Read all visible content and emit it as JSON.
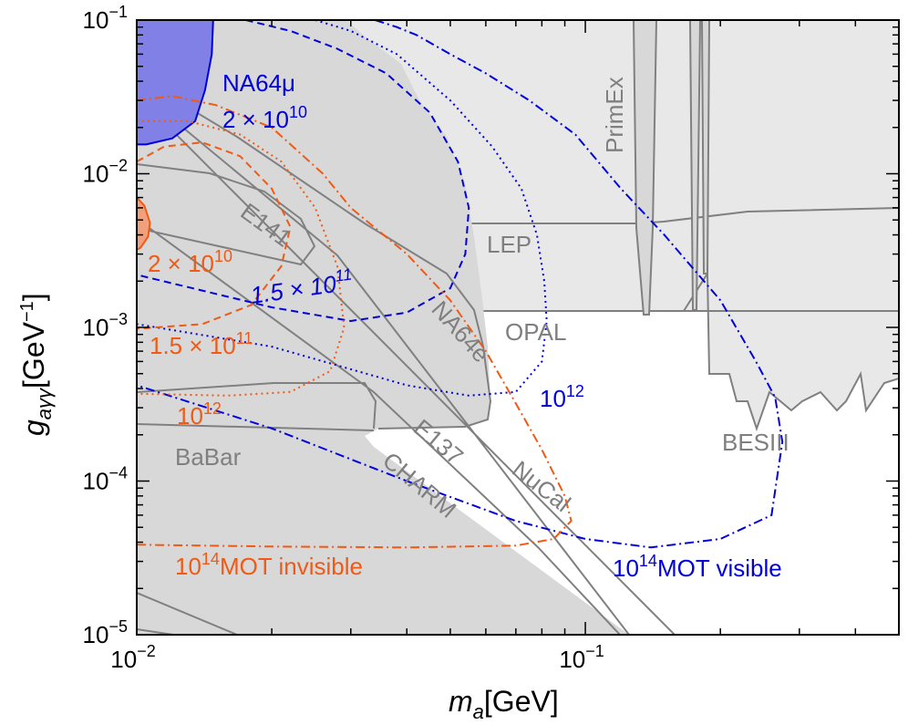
{
  "chart_data": {
    "type": "line",
    "title": "",
    "xlabel": "m_a [GeV]",
    "ylabel": "g_aγγ [GeV^-1]",
    "x_scale": "log",
    "y_scale": "log",
    "xlim": [
      0.01,
      0.5
    ],
    "ylim": [
      1e-05,
      0.1
    ],
    "x_ticks": [
      {
        "value": 0.01,
        "base": "10",
        "exp": "−2"
      },
      {
        "value": 0.1,
        "base": "10",
        "exp": "−1"
      }
    ],
    "y_ticks": [
      {
        "value": 1e-05,
        "base": "10",
        "exp": "−5"
      },
      {
        "value": 0.0001,
        "base": "10",
        "exp": "−4"
      },
      {
        "value": 0.001,
        "base": "10",
        "exp": "−3"
      },
      {
        "value": 0.01,
        "base": "10",
        "exp": "−2"
      },
      {
        "value": 0.1,
        "base": "10",
        "exp": "−1"
      }
    ],
    "excluded_regions": [
      {
        "name": "LEP",
        "label": "LEP"
      },
      {
        "name": "OPAL",
        "label": "OPAL"
      },
      {
        "name": "PrimEx",
        "label": "PrimEx"
      },
      {
        "name": "BESIII",
        "label": "BESIII"
      },
      {
        "name": "E141",
        "label": "E141"
      },
      {
        "name": "NA64e",
        "label": "NA64e"
      },
      {
        "name": "E137",
        "label": "E137"
      },
      {
        "name": "CHARM",
        "label": "CHARM"
      },
      {
        "name": "NuCal",
        "label": "NuCal"
      },
      {
        "name": "BaBar",
        "label": "BaBar"
      },
      {
        "name": "NA64mu",
        "label": "NA64μ"
      }
    ],
    "series": [
      {
        "name": "NA64mu 2e10 MOT",
        "color": "#0000dd",
        "style": "filled",
        "label": "2 × 10",
        "label_exp": "10"
      },
      {
        "name": "NA64mu 1.5e11 MOT",
        "color": "#0000dd",
        "style": "dashed",
        "label": "1.5 × 10",
        "label_exp": "11"
      },
      {
        "name": "NA64mu 1e12 MOT",
        "color": "#0000dd",
        "style": "dotted",
        "label": "10",
        "label_exp": "12"
      },
      {
        "name": "1e14 MOT visible",
        "color": "#0000dd",
        "style": "dash-dot",
        "label": "10",
        "label_exp": "14",
        "label_suffix": "MOT visible"
      },
      {
        "name": "NA64e 2e10 MOT",
        "color": "#f05a14",
        "style": "filled",
        "label": "2 × 10",
        "label_exp": "10"
      },
      {
        "name": "NA64e 1.5e11 MOT",
        "color": "#f05a14",
        "style": "dashed",
        "label": "1.5 × 10",
        "label_exp": "11"
      },
      {
        "name": "NA64e 1e12 MOT",
        "color": "#f05a14",
        "style": "dotted",
        "label": "10",
        "label_exp": "12"
      },
      {
        "name": "1e14 MOT invisible",
        "color": "#f05a14",
        "style": "dash-dot",
        "label": "10",
        "label_exp": "14",
        "label_suffix": "MOT invisible"
      }
    ]
  },
  "axis": {
    "x_main": "m",
    "x_sub": "a",
    "x_unit": "[GeV]",
    "y_main": "g",
    "y_sub": "aγγ",
    "y_unit": "[GeV",
    "y_unit_exp": "−1",
    "y_unit_close": "]"
  },
  "colors": {
    "dark_gray": "#d8d8d8",
    "light_gray": "#e8e8e8",
    "edge_gray": "#808080",
    "blue": "#0000dd",
    "blue_fill": "#8080e6",
    "orange": "#f05a14",
    "orange_fill": "#f2a07c"
  }
}
